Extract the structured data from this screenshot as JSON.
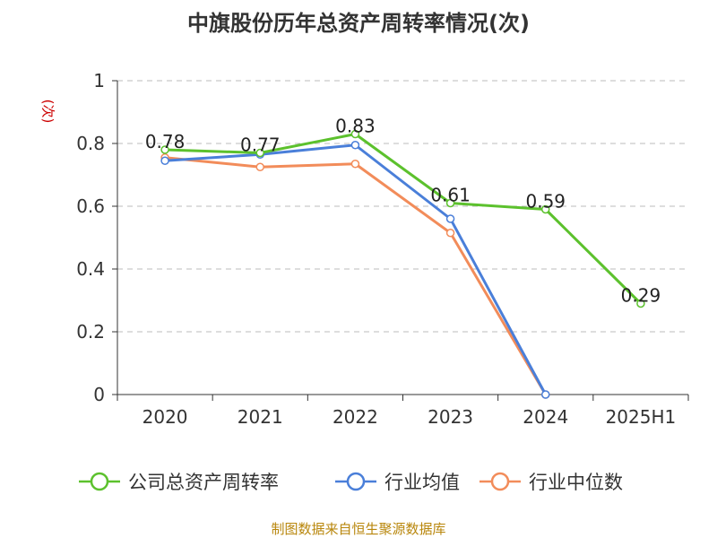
{
  "chart_data": {
    "type": "line",
    "title": "中旗股份历年总资产周转率情况(次)",
    "ylabel": "(次)",
    "categories": [
      "2020",
      "2021",
      "2022",
      "2023",
      "2024",
      "2025H1"
    ],
    "yticks": [
      "0",
      "0.2",
      "0.4",
      "0.6",
      "0.8",
      "1"
    ],
    "ylim": [
      0,
      1
    ],
    "grid": true,
    "legend_position": "bottom",
    "series": [
      {
        "name": "公司总资产周转率",
        "color": "#5cc12d",
        "values": [
          0.78,
          0.77,
          0.83,
          0.61,
          0.59,
          0.29
        ],
        "labels": [
          "0.78",
          "0.77",
          "0.83",
          "0.61",
          "0.59",
          "0.29"
        ]
      },
      {
        "name": "行业均值",
        "color": "#4a7fd9",
        "values": [
          0.745,
          0.765,
          0.795,
          0.56,
          0.0,
          null
        ]
      },
      {
        "name": "行业中位数",
        "color": "#f28c5a",
        "values": [
          0.755,
          0.725,
          0.735,
          0.515,
          0.0,
          null
        ]
      }
    ]
  },
  "source": "制图数据来自恒生聚源数据库"
}
